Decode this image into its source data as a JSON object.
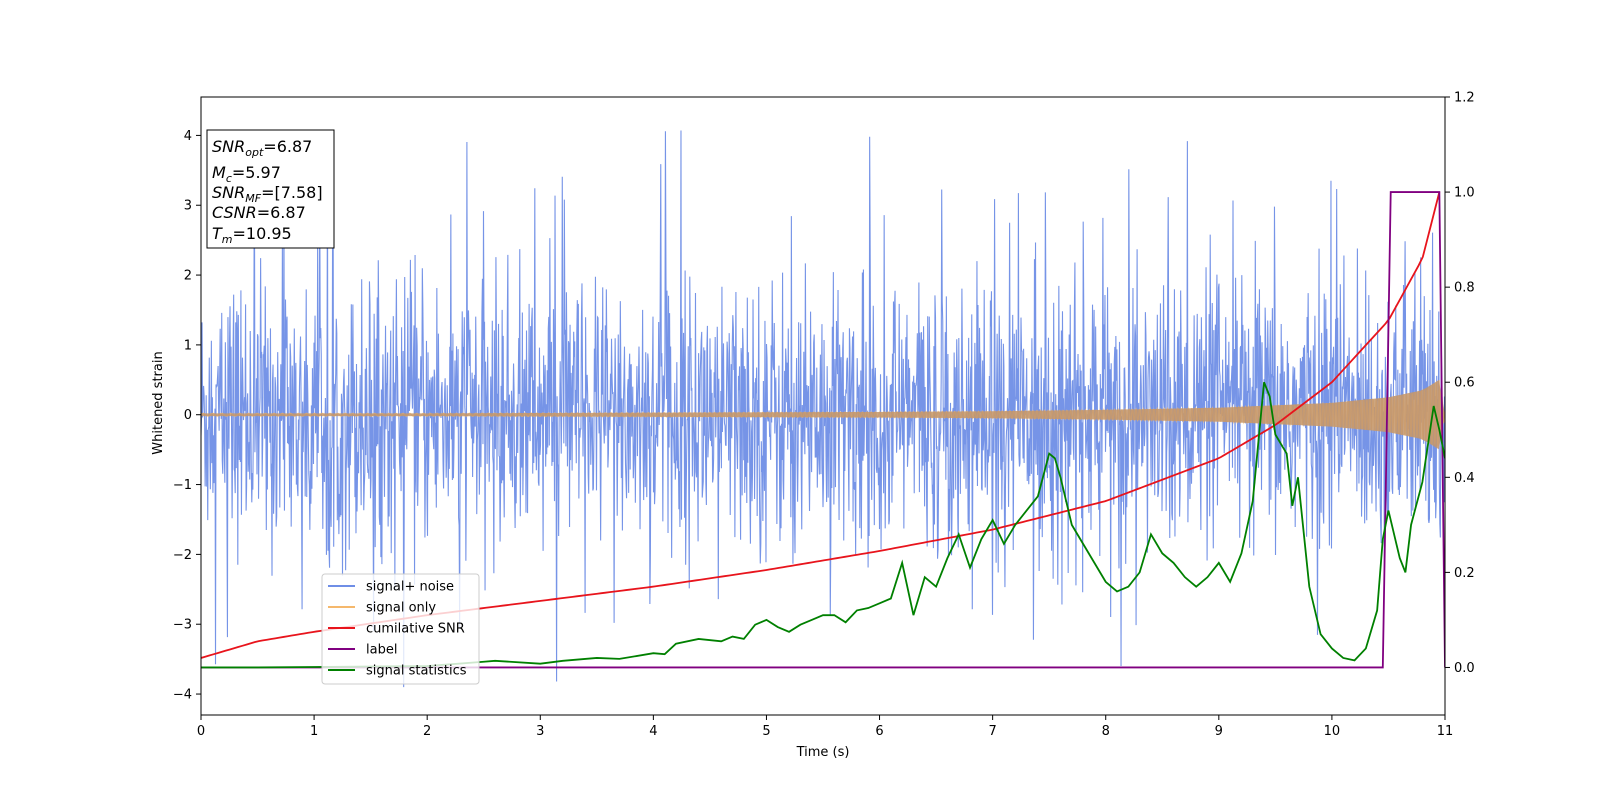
{
  "chart_data": {
    "type": "line",
    "xlabel": "Time (s)",
    "ylabel": "Whitened strain",
    "xlim": [
      0,
      11
    ],
    "ylim": [
      -4.3,
      4.55
    ],
    "ylim_right": [
      -0.1,
      1.2
    ],
    "x_ticks": [
      "0",
      "1",
      "2",
      "3",
      "4",
      "5",
      "6",
      "7",
      "8",
      "9",
      "10",
      "11"
    ],
    "y_ticks": [
      "4",
      "3",
      "2",
      "1",
      "0",
      "−1",
      "−2",
      "−3",
      "−4"
    ],
    "y_ticks_right": [
      "1.2",
      "1.0",
      "0.8",
      "0.6",
      "0.4",
      "0.2",
      "0.0"
    ],
    "grid": false,
    "legend_position": "lower-left",
    "series": [
      {
        "name": "signal+ noise",
        "color": "#6f8ee6",
        "axis": "left",
        "description_values": {
          "typical_band": [
            -1.9,
            2.2
          ],
          "spikes_max": 4.15,
          "spikes_min": -3.9
        }
      },
      {
        "name": "signal only",
        "color": "#f5b86c",
        "axis": "left",
        "envelope": {
          "x": [
            0,
            2,
            4,
            6,
            7,
            8,
            9,
            10,
            10.5,
            10.8,
            10.95,
            11
          ],
          "amp": [
            0.02,
            0.02,
            0.03,
            0.04,
            0.05,
            0.07,
            0.1,
            0.17,
            0.25,
            0.35,
            0.5,
            0.0
          ]
        }
      },
      {
        "name": "cumilative SNR",
        "color": "#e8141c",
        "axis": "right",
        "x": [
          0,
          0.5,
          1,
          2,
          3,
          4,
          5,
          6,
          7,
          8,
          9,
          9.5,
          10,
          10.5,
          10.8,
          10.95
        ],
        "y": [
          0.02,
          0.055,
          0.075,
          0.11,
          0.14,
          0.17,
          0.205,
          0.245,
          0.29,
          0.35,
          0.44,
          0.51,
          0.6,
          0.73,
          0.86,
          1.0
        ]
      },
      {
        "name": "label",
        "color": "#800080",
        "axis": "right",
        "x": [
          0,
          10.45,
          10.52,
          10.95,
          11.0
        ],
        "y": [
          0.0,
          0.0,
          1.0,
          1.0,
          0.0
        ]
      },
      {
        "name": "signal statistics",
        "color": "#008000",
        "axis": "right",
        "x": [
          0,
          0.5,
          1,
          1.5,
          2,
          2.5,
          2.6,
          3,
          3.2,
          3.5,
          3.7,
          4,
          4.1,
          4.2,
          4.4,
          4.6,
          4.7,
          4.8,
          4.9,
          5.0,
          5.1,
          5.2,
          5.3,
          5.4,
          5.5,
          5.6,
          5.7,
          5.8,
          5.9,
          6.0,
          6.1,
          6.2,
          6.3,
          6.4,
          6.5,
          6.6,
          6.7,
          6.8,
          6.9,
          7.0,
          7.1,
          7.2,
          7.3,
          7.4,
          7.5,
          7.55,
          7.6,
          7.7,
          7.8,
          7.9,
          8.0,
          8.1,
          8.2,
          8.3,
          8.4,
          8.5,
          8.6,
          8.7,
          8.8,
          8.9,
          9.0,
          9.1,
          9.2,
          9.3,
          9.4,
          9.45,
          9.5,
          9.55,
          9.6,
          9.65,
          9.7,
          9.8,
          9.9,
          10.0,
          10.1,
          10.2,
          10.3,
          10.4,
          10.45,
          10.5,
          10.6,
          10.65,
          10.7,
          10.8,
          10.9,
          10.95,
          11.0
        ],
        "y": [
          0.0,
          0.0,
          0.001,
          0.002,
          0.003,
          0.012,
          0.014,
          0.008,
          0.014,
          0.02,
          0.018,
          0.03,
          0.028,
          0.05,
          0.06,
          0.055,
          0.065,
          0.06,
          0.09,
          0.1,
          0.085,
          0.075,
          0.09,
          0.1,
          0.11,
          0.11,
          0.095,
          0.12,
          0.125,
          0.135,
          0.145,
          0.22,
          0.11,
          0.19,
          0.17,
          0.23,
          0.28,
          0.21,
          0.27,
          0.31,
          0.26,
          0.3,
          0.33,
          0.36,
          0.45,
          0.44,
          0.4,
          0.3,
          0.26,
          0.22,
          0.18,
          0.16,
          0.17,
          0.2,
          0.28,
          0.24,
          0.22,
          0.19,
          0.17,
          0.19,
          0.22,
          0.18,
          0.24,
          0.35,
          0.6,
          0.57,
          0.49,
          0.47,
          0.45,
          0.34,
          0.4,
          0.17,
          0.07,
          0.04,
          0.02,
          0.015,
          0.04,
          0.12,
          0.27,
          0.33,
          0.23,
          0.2,
          0.3,
          0.39,
          0.55,
          0.5,
          0.44
        ]
      }
    ],
    "annotation_box": {
      "lines": [
        {
          "var": "SNR",
          "sub": "opt",
          "value": "=6.87"
        },
        {
          "var": "M",
          "sub": "c",
          "value": "=5.97"
        },
        {
          "var": "SNR",
          "sub": "MF",
          "value": "=[7.58]"
        },
        {
          "var": "CSNR",
          "sub": "",
          "value": "=6.87"
        },
        {
          "var": "T",
          "sub": "m",
          "value": "=10.95"
        }
      ]
    }
  }
}
